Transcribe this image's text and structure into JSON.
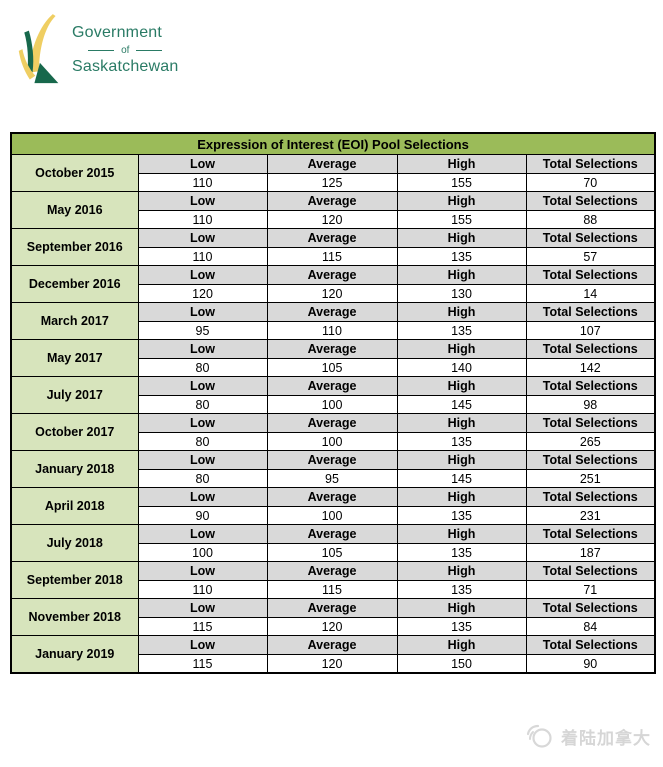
{
  "logo": {
    "government": "Government",
    "of": "of",
    "saskatchewan": "Saskatchewan"
  },
  "table": {
    "title": "Expression of Interest (EOI) Pool Selections",
    "columns": [
      "Low",
      "Average",
      "High",
      "Total Selections"
    ],
    "rows": [
      {
        "date": "October 2015",
        "low": "110",
        "average": "125",
        "high": "155",
        "total": "70"
      },
      {
        "date": "May 2016",
        "low": "110",
        "average": "120",
        "high": "155",
        "total": "88"
      },
      {
        "date": "September 2016",
        "low": "110",
        "average": "115",
        "high": "135",
        "total": "57"
      },
      {
        "date": "December 2016",
        "low": "120",
        "average": "120",
        "high": "130",
        "total": "14"
      },
      {
        "date": "March 2017",
        "low": "95",
        "average": "110",
        "high": "135",
        "total": "107"
      },
      {
        "date": "May 2017",
        "low": "80",
        "average": "105",
        "high": "140",
        "total": "142"
      },
      {
        "date": "July 2017",
        "low": "80",
        "average": "100",
        "high": "145",
        "total": "98"
      },
      {
        "date": "October 2017",
        "low": "80",
        "average": "100",
        "high": "135",
        "total": "265"
      },
      {
        "date": "January 2018",
        "low": "80",
        "average": "95",
        "high": "145",
        "total": "251"
      },
      {
        "date": "April 2018",
        "low": "90",
        "average": "100",
        "high": "135",
        "total": "231"
      },
      {
        "date": "July 2018",
        "low": "100",
        "average": "105",
        "high": "135",
        "total": "187"
      },
      {
        "date": "September 2018",
        "low": "110",
        "average": "115",
        "high": "135",
        "total": "71"
      },
      {
        "date": "November 2018",
        "low": "115",
        "average": "120",
        "high": "135",
        "total": "84"
      },
      {
        "date": "January 2019",
        "low": "115",
        "average": "120",
        "high": "150",
        "total": "90"
      }
    ]
  },
  "watermark": {
    "text": "着陆加拿大"
  },
  "colors": {
    "title_bg": "#9BBB59",
    "date_bg": "#D7E4BC",
    "header_bg": "#D9D9D9",
    "border": "#000000",
    "logo_text_green": "#2A7B65",
    "logo_dark_green": "#17684C",
    "logo_yellow": "#EFCE62",
    "watermark_gray": "#D6D6D6"
  }
}
